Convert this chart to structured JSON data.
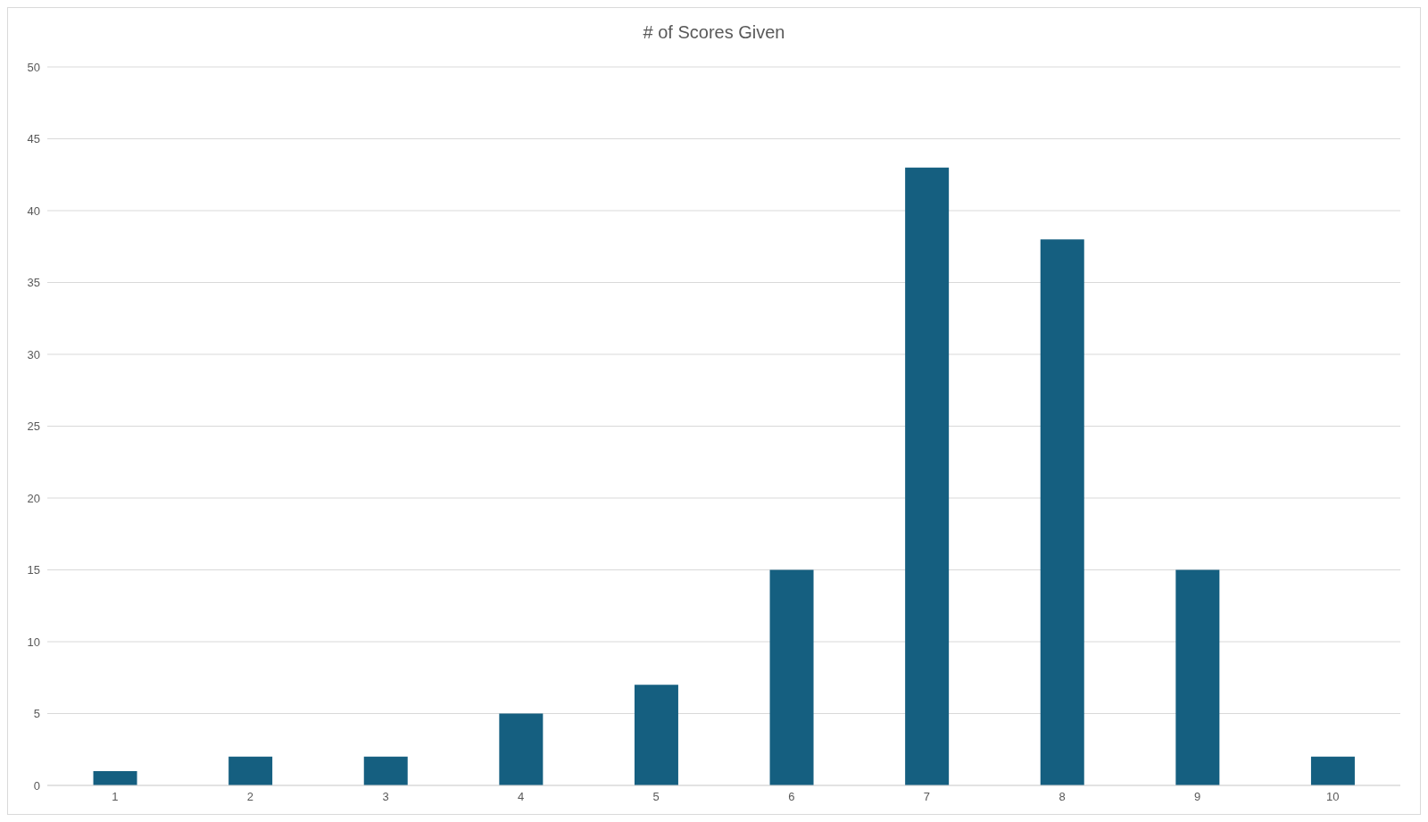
{
  "chart_data": {
    "type": "bar",
    "title": "# of Scores Given",
    "categories": [
      "1",
      "2",
      "3",
      "4",
      "5",
      "6",
      "7",
      "8",
      "9",
      "10"
    ],
    "values": [
      1,
      2,
      2,
      5,
      7,
      15,
      43,
      38,
      15,
      2
    ],
    "color": "#155f80",
    "ylim": [
      0,
      50
    ],
    "yticks": [
      0,
      5,
      10,
      15,
      20,
      25,
      30,
      35,
      40,
      45,
      50
    ],
    "grid": "y"
  }
}
